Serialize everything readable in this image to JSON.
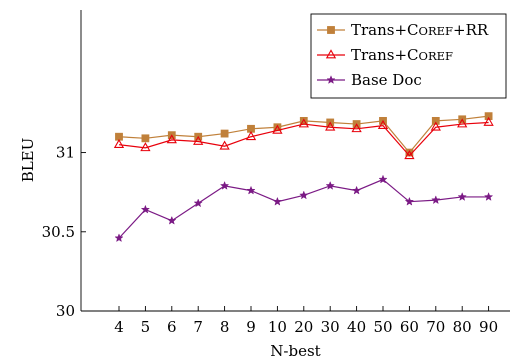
{
  "chart_data": {
    "type": "line",
    "title": "",
    "xlabel": "N-best",
    "ylabel": "BLEU",
    "categories": [
      "4",
      "5",
      "6",
      "7",
      "8",
      "9",
      "10",
      "20",
      "30",
      "40",
      "50",
      "60",
      "70",
      "80",
      "90"
    ],
    "ylim": [
      30,
      31.9
    ],
    "yticks": [
      {
        "value": 30,
        "label": "30"
      },
      {
        "value": 30.5,
        "label": "30.5"
      },
      {
        "value": 31,
        "label": "31"
      }
    ],
    "grid": false,
    "legend_position": "top-right",
    "series": [
      {
        "name": "Trans+Coref+RR",
        "name_parts": [
          {
            "text": "Trans+C",
            "small": false
          },
          {
            "text": "OREF",
            "small": true
          },
          {
            "text": "+RR",
            "small": false
          }
        ],
        "color": "#c0803a",
        "marker": "square",
        "values": [
          31.1,
          31.09,
          31.11,
          31.1,
          31.12,
          31.15,
          31.16,
          31.2,
          31.19,
          31.18,
          31.2,
          31.0,
          31.2,
          31.21,
          31.23
        ]
      },
      {
        "name": "Trans+Coref",
        "name_parts": [
          {
            "text": "Trans+C",
            "small": false
          },
          {
            "text": "OREF",
            "small": true
          }
        ],
        "color": "#e8000b",
        "marker": "triangle",
        "values": [
          31.05,
          31.03,
          31.08,
          31.07,
          31.04,
          31.1,
          31.14,
          31.18,
          31.16,
          31.15,
          31.17,
          30.98,
          31.16,
          31.18,
          31.19
        ]
      },
      {
        "name": "Base Doc",
        "name_parts": [
          {
            "text": "Base Doc",
            "small": false
          }
        ],
        "color": "#7b1a85",
        "marker": "star",
        "values": [
          30.46,
          30.64,
          30.57,
          30.68,
          30.79,
          30.76,
          30.69,
          30.73,
          30.79,
          30.76,
          30.83,
          30.69,
          30.7,
          30.72,
          30.72
        ]
      }
    ]
  }
}
